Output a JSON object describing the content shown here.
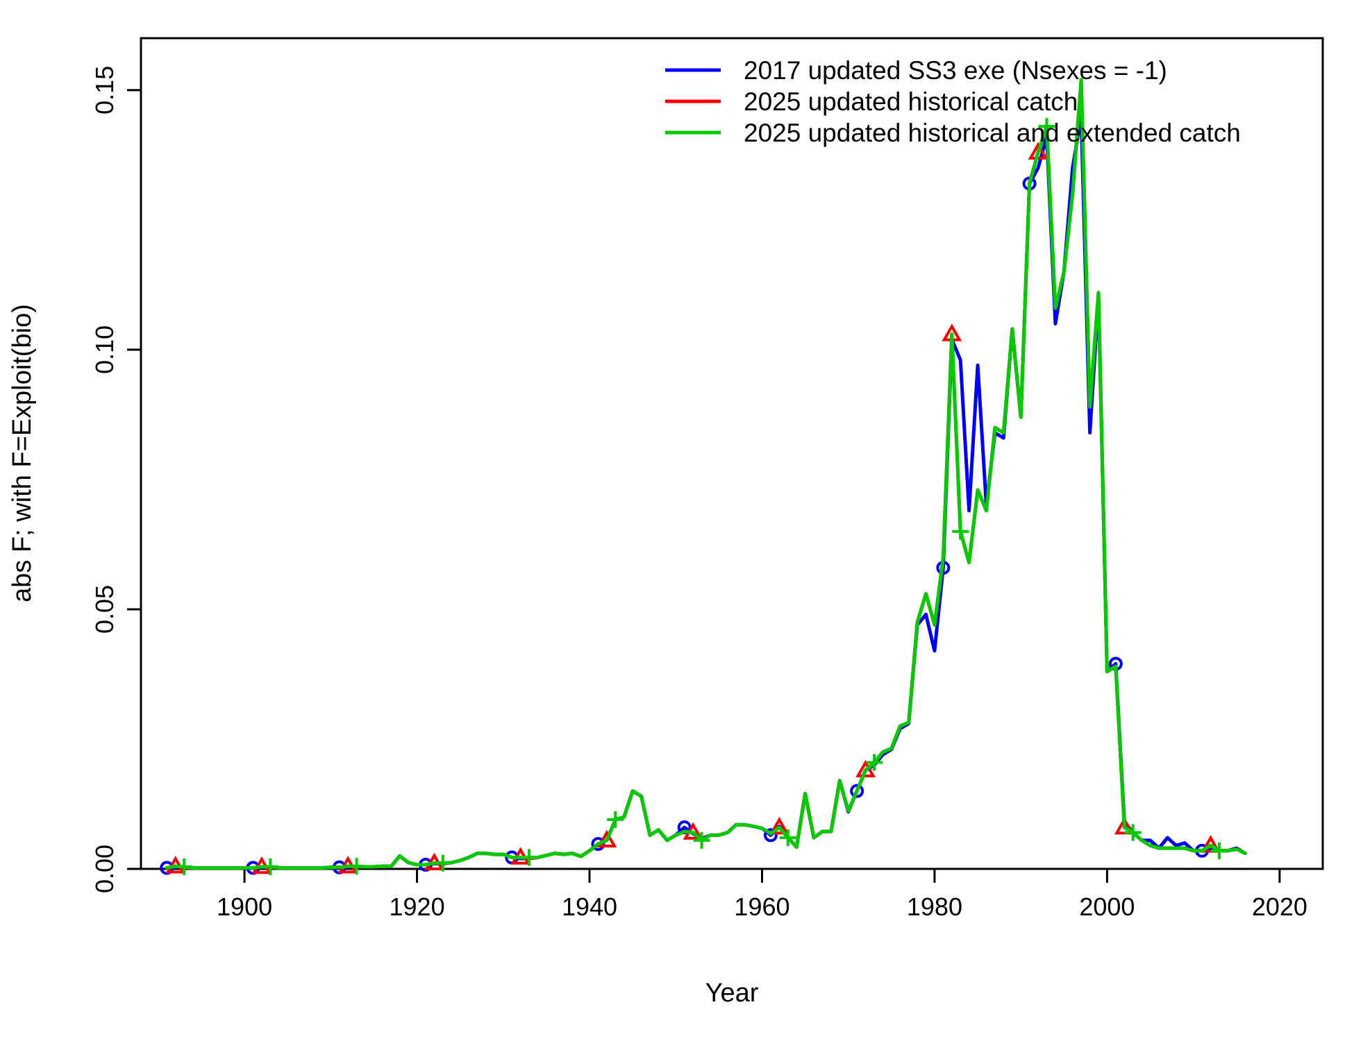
{
  "chart_data": {
    "type": "line",
    "title": "",
    "xlabel": "Year",
    "ylabel": "abs F; with F=Exploit(bio)",
    "xlim": [
      1888,
      2025
    ],
    "ylim": [
      0,
      0.16
    ],
    "x_ticks": [
      1900,
      1920,
      1940,
      1960,
      1980,
      2000,
      2020
    ],
    "y_ticks": [
      0.0,
      0.05,
      0.1,
      0.15
    ],
    "x_tick_labels": [
      "1900",
      "1920",
      "1940",
      "1960",
      "1980",
      "2000",
      "2020"
    ],
    "y_tick_labels": [
      "0.00",
      "0.05",
      "0.10",
      "0.15"
    ],
    "grid": false,
    "legend_position": "top-right",
    "series": [
      {
        "name": "2017 updated SS3 exe (Nsexes = -1)",
        "color": "#0000ff",
        "marker": "circle",
        "marker_start": 1891,
        "marker_every": 10,
        "x": [
          1891,
          1892,
          1893,
          1894,
          1895,
          1896,
          1897,
          1898,
          1899,
          1900,
          1901,
          1902,
          1903,
          1904,
          1905,
          1906,
          1907,
          1908,
          1909,
          1910,
          1911,
          1912,
          1913,
          1914,
          1915,
          1916,
          1917,
          1918,
          1919,
          1920,
          1921,
          1922,
          1923,
          1924,
          1925,
          1926,
          1927,
          1928,
          1929,
          1930,
          1931,
          1932,
          1933,
          1934,
          1935,
          1936,
          1937,
          1938,
          1939,
          1940,
          1941,
          1942,
          1943,
          1944,
          1945,
          1946,
          1947,
          1948,
          1949,
          1950,
          1951,
          1952,
          1953,
          1954,
          1955,
          1956,
          1957,
          1958,
          1959,
          1960,
          1961,
          1962,
          1963,
          1964,
          1965,
          1966,
          1967,
          1968,
          1969,
          1970,
          1971,
          1972,
          1973,
          1974,
          1975,
          1976,
          1977,
          1978,
          1979,
          1980,
          1981,
          1982,
          1983,
          1984,
          1985,
          1986,
          1987,
          1988,
          1989,
          1990,
          1991,
          1992,
          1993,
          1994,
          1995,
          1996,
          1997,
          1998,
          1999,
          2000,
          2001,
          2002,
          2003,
          2004,
          2005,
          2006,
          2007,
          2008,
          2009,
          2010,
          2011,
          2012,
          2013,
          2014,
          2015,
          2016
        ],
        "y": [
          0.0002,
          0.0004,
          0.0003,
          0.0002,
          0.0002,
          0.0002,
          0.0002,
          0.0002,
          0.0002,
          0.0002,
          0.0002,
          0.0003,
          0.0003,
          0.0002,
          0.0002,
          0.0002,
          0.0002,
          0.0002,
          0.0002,
          0.0003,
          0.0003,
          0.0004,
          0.0004,
          0.0004,
          0.0004,
          0.0005,
          0.0005,
          0.0025,
          0.0012,
          0.0008,
          0.0008,
          0.001,
          0.001,
          0.0012,
          0.0016,
          0.0022,
          0.003,
          0.003,
          0.0028,
          0.0028,
          0.0022,
          0.002,
          0.002,
          0.0022,
          0.0026,
          0.003,
          0.0028,
          0.003,
          0.0024,
          0.0035,
          0.0048,
          0.0055,
          0.0095,
          0.01,
          0.015,
          0.014,
          0.0065,
          0.0075,
          0.0055,
          0.0065,
          0.008,
          0.0068,
          0.0058,
          0.0065,
          0.0065,
          0.007,
          0.0085,
          0.0085,
          0.0082,
          0.0078,
          0.0065,
          0.0082,
          0.006,
          0.0042,
          0.0145,
          0.006,
          0.0072,
          0.0072,
          0.017,
          0.011,
          0.015,
          0.019,
          0.02,
          0.022,
          0.023,
          0.027,
          0.028,
          0.047,
          0.049,
          0.042,
          0.058,
          0.102,
          0.098,
          0.069,
          0.097,
          0.07,
          0.084,
          0.083,
          0.104,
          0.087,
          0.132,
          0.135,
          0.141,
          0.105,
          0.115,
          0.135,
          0.145,
          0.084,
          0.11,
          0.038,
          0.0395,
          0.009,
          0.007,
          0.0055,
          0.0055,
          0.004,
          0.006,
          0.0045,
          0.005,
          0.0035,
          0.0035,
          0.004,
          0.0035,
          0.0035,
          0.004,
          0.003
        ]
      },
      {
        "name": "2025 updated historical catch",
        "color": "#ff0000",
        "marker": "triangle",
        "marker_start": 1892,
        "marker_every": 10,
        "x": [
          1891,
          1892,
          1893,
          1894,
          1895,
          1896,
          1897,
          1898,
          1899,
          1900,
          1901,
          1902,
          1903,
          1904,
          1905,
          1906,
          1907,
          1908,
          1909,
          1910,
          1911,
          1912,
          1913,
          1914,
          1915,
          1916,
          1917,
          1918,
          1919,
          1920,
          1921,
          1922,
          1923,
          1924,
          1925,
          1926,
          1927,
          1928,
          1929,
          1930,
          1931,
          1932,
          1933,
          1934,
          1935,
          1936,
          1937,
          1938,
          1939,
          1940,
          1941,
          1942,
          1943,
          1944,
          1945,
          1946,
          1947,
          1948,
          1949,
          1950,
          1951,
          1952,
          1953,
          1954,
          1955,
          1956,
          1957,
          1958,
          1959,
          1960,
          1961,
          1962,
          1963,
          1964,
          1965,
          1966,
          1967,
          1968,
          1969,
          1970,
          1971,
          1972,
          1973,
          1974,
          1975,
          1976,
          1977,
          1978,
          1979,
          1980,
          1981,
          1982,
          1983,
          1984,
          1985,
          1986,
          1987,
          1988,
          1989,
          1990,
          1991,
          1992,
          1993,
          1994,
          1995,
          1996,
          1997,
          1998,
          1999,
          2000,
          2001,
          2002,
          2003,
          2004,
          2005,
          2006,
          2007,
          2008,
          2009,
          2010,
          2011,
          2012,
          2013,
          2014,
          2015,
          2016
        ],
        "y": [
          0.0002,
          0.0005,
          0.0003,
          0.0002,
          0.0002,
          0.0002,
          0.0002,
          0.0002,
          0.0002,
          0.0002,
          0.0002,
          0.0004,
          0.0003,
          0.0002,
          0.0002,
          0.0002,
          0.0002,
          0.0002,
          0.0002,
          0.0003,
          0.0003,
          0.0005,
          0.0004,
          0.0004,
          0.0004,
          0.0005,
          0.0005,
          0.0025,
          0.0012,
          0.0008,
          0.0008,
          0.0011,
          0.001,
          0.0012,
          0.0016,
          0.0022,
          0.003,
          0.003,
          0.0028,
          0.0028,
          0.0022,
          0.0022,
          0.002,
          0.0022,
          0.0026,
          0.003,
          0.0028,
          0.003,
          0.0024,
          0.0035,
          0.0048,
          0.0055,
          0.0095,
          0.01,
          0.015,
          0.014,
          0.0065,
          0.0075,
          0.0055,
          0.0065,
          0.0072,
          0.007,
          0.0055,
          0.0065,
          0.0065,
          0.007,
          0.0085,
          0.0085,
          0.0082,
          0.0078,
          0.0068,
          0.008,
          0.006,
          0.0042,
          0.0145,
          0.006,
          0.0072,
          0.0072,
          0.017,
          0.0112,
          0.015,
          0.019,
          0.0205,
          0.0225,
          0.0232,
          0.0275,
          0.0282,
          0.0475,
          0.053,
          0.047,
          0.06,
          0.103,
          0.065,
          0.059,
          0.073,
          0.069,
          0.085,
          0.084,
          0.104,
          0.087,
          0.132,
          0.138,
          0.143,
          0.108,
          0.115,
          0.13,
          0.152,
          0.089,
          0.111,
          0.038,
          0.039,
          0.008,
          0.007,
          0.0055,
          0.0045,
          0.004,
          0.004,
          0.004,
          0.004,
          0.0035,
          0.0035,
          0.0045,
          0.0035,
          0.0035,
          0.0038,
          0.003
        ]
      },
      {
        "name": "2025 updated historical and extended catch",
        "color": "#00cc00",
        "marker": "plus",
        "marker_start": 1893,
        "marker_every": 10,
        "x": [
          1891,
          1892,
          1893,
          1894,
          1895,
          1896,
          1897,
          1898,
          1899,
          1900,
          1901,
          1902,
          1903,
          1904,
          1905,
          1906,
          1907,
          1908,
          1909,
          1910,
          1911,
          1912,
          1913,
          1914,
          1915,
          1916,
          1917,
          1918,
          1919,
          1920,
          1921,
          1922,
          1923,
          1924,
          1925,
          1926,
          1927,
          1928,
          1929,
          1930,
          1931,
          1932,
          1933,
          1934,
          1935,
          1936,
          1937,
          1938,
          1939,
          1940,
          1941,
          1942,
          1943,
          1944,
          1945,
          1946,
          1947,
          1948,
          1949,
          1950,
          1951,
          1952,
          1953,
          1954,
          1955,
          1956,
          1957,
          1958,
          1959,
          1960,
          1961,
          1962,
          1963,
          1964,
          1965,
          1966,
          1967,
          1968,
          1969,
          1970,
          1971,
          1972,
          1973,
          1974,
          1975,
          1976,
          1977,
          1978,
          1979,
          1980,
          1981,
          1982,
          1983,
          1984,
          1985,
          1986,
          1987,
          1988,
          1989,
          1990,
          1991,
          1992,
          1993,
          1994,
          1995,
          1996,
          1997,
          1998,
          1999,
          2000,
          2001,
          2002,
          2003,
          2004,
          2005,
          2006,
          2007,
          2008,
          2009,
          2010,
          2011,
          2012,
          2013,
          2014,
          2015,
          2016
        ],
        "y": [
          0.0002,
          0.0005,
          0.0004,
          0.0002,
          0.0002,
          0.0002,
          0.0002,
          0.0002,
          0.0002,
          0.0002,
          0.0002,
          0.0004,
          0.0004,
          0.0002,
          0.0002,
          0.0002,
          0.0002,
          0.0002,
          0.0002,
          0.0003,
          0.0003,
          0.0005,
          0.0005,
          0.0004,
          0.0004,
          0.0005,
          0.0005,
          0.0025,
          0.0012,
          0.0008,
          0.0008,
          0.0011,
          0.0011,
          0.0012,
          0.0016,
          0.0022,
          0.003,
          0.003,
          0.0028,
          0.0028,
          0.0022,
          0.0022,
          0.0022,
          0.0022,
          0.0026,
          0.003,
          0.0028,
          0.003,
          0.0024,
          0.0035,
          0.0048,
          0.0055,
          0.0095,
          0.01,
          0.015,
          0.014,
          0.0065,
          0.0075,
          0.0055,
          0.0065,
          0.0072,
          0.007,
          0.0055,
          0.0065,
          0.0065,
          0.007,
          0.0085,
          0.0085,
          0.0082,
          0.0078,
          0.0068,
          0.008,
          0.006,
          0.0042,
          0.0145,
          0.006,
          0.0072,
          0.0072,
          0.017,
          0.0112,
          0.015,
          0.019,
          0.0205,
          0.0225,
          0.0232,
          0.0275,
          0.0282,
          0.0475,
          0.053,
          0.047,
          0.06,
          0.103,
          0.065,
          0.059,
          0.073,
          0.069,
          0.085,
          0.084,
          0.104,
          0.087,
          0.132,
          0.138,
          0.143,
          0.108,
          0.115,
          0.13,
          0.152,
          0.089,
          0.111,
          0.038,
          0.039,
          0.008,
          0.007,
          0.0055,
          0.0045,
          0.004,
          0.004,
          0.004,
          0.004,
          0.0035,
          0.0035,
          0.0045,
          0.0035,
          0.0035,
          0.0038,
          0.003
        ]
      }
    ]
  }
}
